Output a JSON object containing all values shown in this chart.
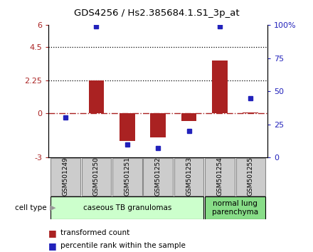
{
  "title": "GDS4256 / Hs2.385684.1.S1_3p_at",
  "samples": [
    "GSM501249",
    "GSM501250",
    "GSM501251",
    "GSM501252",
    "GSM501253",
    "GSM501254",
    "GSM501255"
  ],
  "transformed_count": [
    0.0,
    2.25,
    -1.85,
    -1.65,
    -0.5,
    3.6,
    0.05
  ],
  "percentile_rank": [
    30,
    99,
    10,
    7,
    20,
    99,
    45
  ],
  "ylim_left": [
    -3,
    6
  ],
  "ylim_right": [
    0,
    100
  ],
  "yticks_left": [
    -3,
    0,
    2.25,
    4.5,
    6
  ],
  "yticks_right": [
    0,
    25,
    50,
    75,
    100
  ],
  "ytick_labels_left": [
    "-3",
    "0",
    "2.25",
    "4.5",
    "6"
  ],
  "ytick_labels_right": [
    "0",
    "25",
    "50",
    "75",
    "100%"
  ],
  "dotted_lines": [
    4.5,
    2.25
  ],
  "bar_color": "#aa2222",
  "dot_color": "#2222bb",
  "cell_type_groups": [
    {
      "label": "caseous TB granulomas",
      "indices": [
        0,
        1,
        2,
        3,
        4
      ],
      "color": "#ccffcc"
    },
    {
      "label": "normal lung\nparenchyma",
      "indices": [
        5,
        6
      ],
      "color": "#88dd88"
    }
  ],
  "legend_items": [
    {
      "label": "transformed count",
      "color": "#aa2222"
    },
    {
      "label": "percentile rank within the sample",
      "color": "#2222bb"
    }
  ],
  "cell_type_label": "cell type",
  "bar_width": 0.5,
  "sample_box_color": "#cccccc",
  "sample_box_edge": "#888888"
}
